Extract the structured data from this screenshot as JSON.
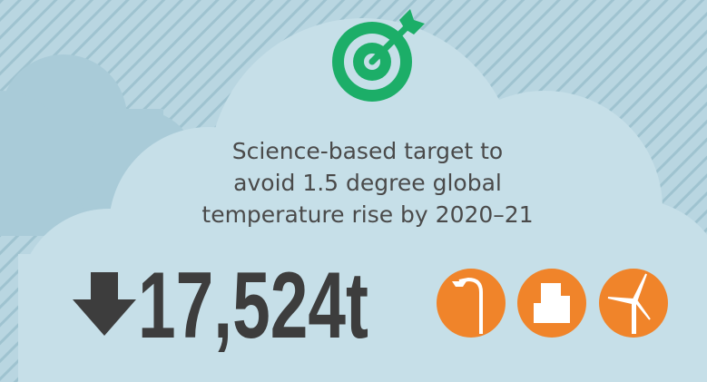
{
  "description": {
    "lines": [
      "Science-based target to",
      "avoid 1.5 degree global",
      "temperature rise by 2020–21"
    ]
  },
  "figure": {
    "value": "17,524t"
  }
}
